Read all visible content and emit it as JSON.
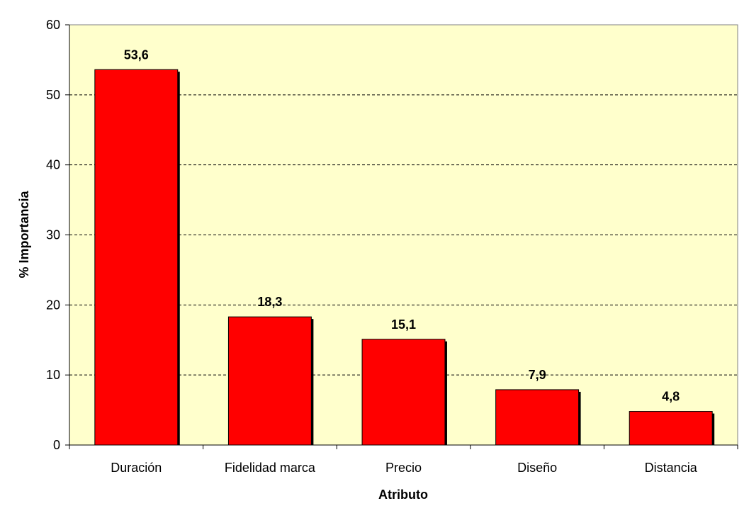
{
  "chart_data": {
    "type": "bar",
    "title": "",
    "xlabel": "Atributo",
    "ylabel": "% Importancia",
    "categories": [
      "Duración",
      "Fidelidad marca",
      "Precio",
      "Diseño",
      "Distancia"
    ],
    "values": [
      53.6,
      18.3,
      15.1,
      7.9,
      4.8
    ],
    "value_labels": [
      "53,6",
      "18,3",
      "15,1",
      "7,9",
      "4,8"
    ],
    "ylim": [
      0,
      60
    ],
    "yticks": [
      0,
      10,
      20,
      30,
      40,
      50,
      60
    ],
    "ytick_labels": [
      "0",
      "10",
      "20",
      "30",
      "40",
      "50",
      "60"
    ],
    "grid": true,
    "legend": "none",
    "colors": {
      "bar": "#ff0000",
      "plot_background": "#ffffcc",
      "gridline": "#000000"
    }
  }
}
